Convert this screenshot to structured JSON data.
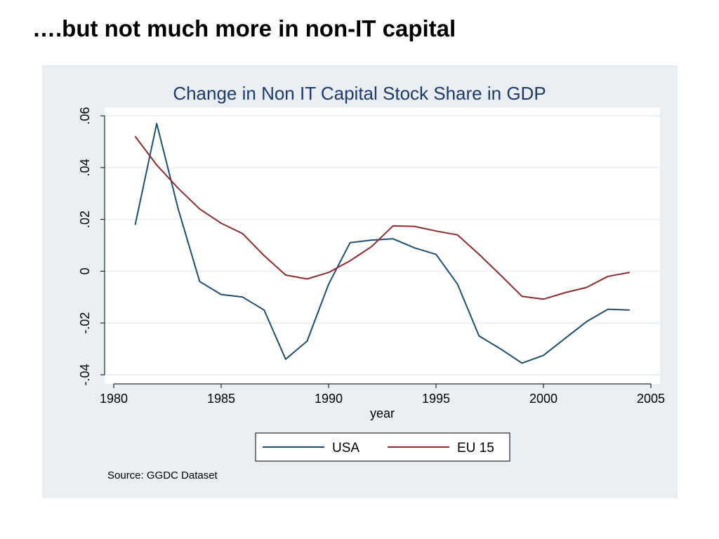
{
  "slide": {
    "title": "….but not much more in non-IT capital"
  },
  "colors": {
    "usa": "#1f4e6e",
    "eu15": "#8b2c32",
    "frame_bg": "#e8eef1",
    "plot_bg": "#ffffff",
    "grid": "#e8eef1",
    "title": "#1f3a6a"
  },
  "chart_data": {
    "type": "line",
    "title": "Change in Non IT Capital Stock Share in GDP",
    "xlabel": "year",
    "ylabel": "",
    "xlim": [
      1980,
      2005
    ],
    "ylim": [
      -0.04,
      0.06
    ],
    "xticks": [
      {
        "value": 1980,
        "label": "1980"
      },
      {
        "value": 1985,
        "label": "1985"
      },
      {
        "value": 1990,
        "label": "1990"
      },
      {
        "value": 1995,
        "label": "1995"
      },
      {
        "value": 2000,
        "label": "2000"
      },
      {
        "value": 2005,
        "label": "2005"
      }
    ],
    "yticks": [
      {
        "value": -0.04,
        "label": "-.04"
      },
      {
        "value": -0.02,
        "label": "-.02"
      },
      {
        "value": 0,
        "label": "0"
      },
      {
        "value": 0.02,
        "label": ".02"
      },
      {
        "value": 0.04,
        "label": ".04"
      },
      {
        "value": 0.06,
        "label": ".06"
      }
    ],
    "grid": true,
    "legend_position": "bottom",
    "x": [
      1981,
      1982,
      1983,
      1984,
      1985,
      1986,
      1987,
      1988,
      1989,
      1990,
      1991,
      1992,
      1993,
      1994,
      1995,
      1996,
      1997,
      1998,
      1999,
      2000,
      2001,
      2002,
      2003,
      2004
    ],
    "series": [
      {
        "name": "USA",
        "color": "#1f4e6e",
        "values": [
          0.018,
          0.057,
          0.024,
          -0.004,
          -0.009,
          -0.01,
          -0.015,
          -0.034,
          -0.027,
          -0.005,
          0.011,
          0.012,
          0.0125,
          0.009,
          0.0065,
          -0.005,
          -0.025,
          -0.03,
          -0.0355,
          -0.0325,
          -0.026,
          -0.0195,
          -0.0147,
          -0.015
        ]
      },
      {
        "name": "EU 15",
        "color": "#8b2c32",
        "values": [
          0.052,
          0.041,
          0.032,
          0.024,
          0.0185,
          0.0145,
          0.006,
          -0.0015,
          -0.003,
          -0.0005,
          0.004,
          0.0095,
          0.0175,
          0.0173,
          0.0155,
          0.014,
          0.0065,
          -0.0015,
          -0.0097,
          -0.0108,
          -0.0083,
          -0.0063,
          -0.002,
          -0.0005
        ]
      }
    ],
    "source_note": "Source: GGDC Dataset"
  }
}
